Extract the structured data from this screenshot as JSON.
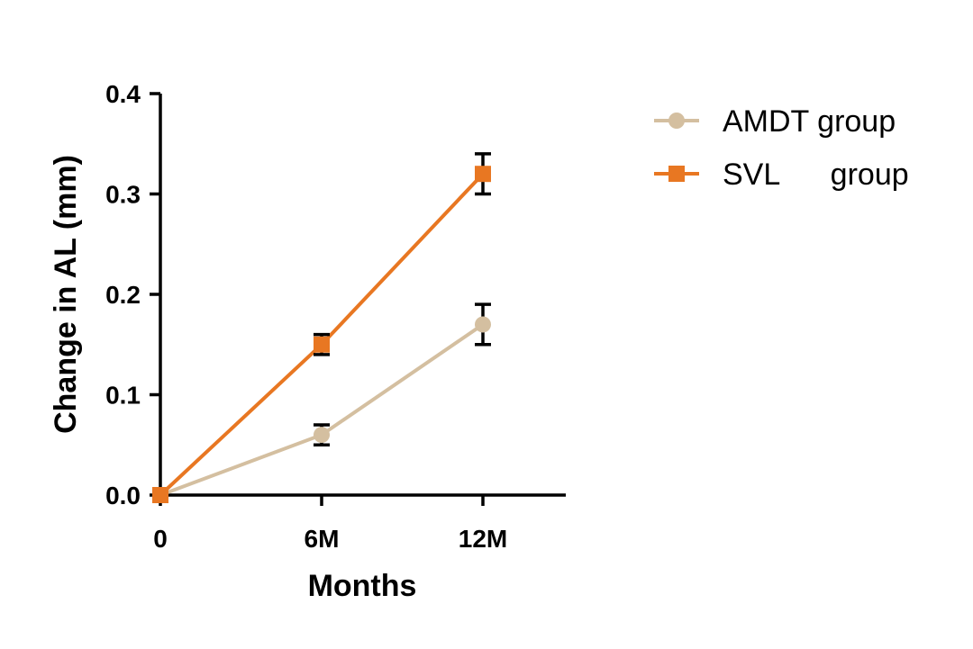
{
  "chart_data": {
    "type": "line",
    "title": "",
    "xlabel": "Months",
    "ylabel": "Change in AL (mm)",
    "categories": [
      "0",
      "6M",
      "12M"
    ],
    "y_ticks": [
      "0.0",
      "0.1",
      "0.2",
      "0.3",
      "0.4"
    ],
    "ylim": [
      0,
      0.4
    ],
    "grid": false,
    "legend_position": "top-right",
    "series": [
      {
        "name": "AMDT group",
        "color": "#d4bfa0",
        "marker": "circle",
        "values": [
          0.0,
          0.06,
          0.17
        ],
        "error": [
          0.0,
          0.01,
          0.02
        ]
      },
      {
        "name": "SVL      group",
        "color": "#e87722",
        "marker": "square",
        "values": [
          0.0,
          0.15,
          0.32
        ],
        "error": [
          0.0,
          0.01,
          0.02
        ]
      }
    ]
  }
}
